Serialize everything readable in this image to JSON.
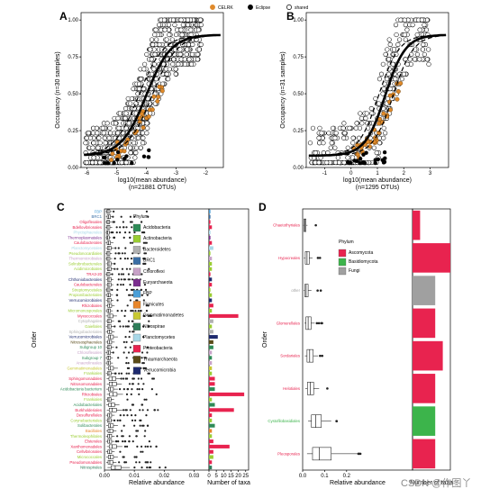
{
  "legend_top": [
    {
      "label": "CELRK",
      "color": "#e08a2a",
      "fill": "#e08a2a"
    },
    {
      "label": "Eclipse",
      "color": "#000000",
      "fill": "#000000"
    },
    {
      "label": "shared",
      "color": "#000000",
      "fill": "#ffffff"
    }
  ],
  "watermark": "CSDN @作图丫",
  "chart_data": [
    {
      "panel": "A",
      "type": "scatter",
      "xlabel": "log10(mean abundance)",
      "xlabel2": "(n=21881 OTUs)",
      "ylabel": "Occupancy (n=30 samples)",
      "xlim": [
        -6.2,
        -1.4
      ],
      "ylim": [
        0,
        1.05
      ],
      "xticks": [
        -6,
        -5,
        -4,
        -3,
        -2
      ],
      "yticks": [
        0,
        0.25,
        0.5,
        0.75,
        1
      ],
      "ytick_labels": [
        "0.00",
        "0.25",
        "0.50",
        "0.75",
        "1.00"
      ],
      "fit": {
        "center": -4.0,
        "slope": 2.4
      },
      "upper_ci_center": -4.25,
      "lower_ci_center": -3.8
    },
    {
      "panel": "B",
      "type": "scatter",
      "xlabel": "log10(mean abundance)",
      "xlabel2": "(n=1295 OTUs)",
      "ylabel": "Occupancy (n=31 samples)",
      "xlim": [
        -1.7,
        3.7
      ],
      "ylim": [
        0,
        1.05
      ],
      "xticks": [
        -1,
        0,
        1,
        2,
        3
      ],
      "yticks": [
        0,
        0.25,
        0.5,
        0.75,
        1
      ],
      "ytick_labels": [
        "0.00",
        "0.25",
        "0.50",
        "0.75",
        "1.00"
      ],
      "fit": {
        "center": 1.3,
        "slope": 2.6
      },
      "upper_ci_center": 1.05,
      "lower_ci_center": 1.6
    },
    {
      "panel": "C",
      "type": "box+bar",
      "xlabel_box": "Relative abundance",
      "xlabel_bar": "Number of taxa",
      "ylabel": "Order",
      "box_xlim": [
        0,
        0.035
      ],
      "box_xticks": [
        0,
        0.01,
        0.02,
        0.03
      ],
      "box_xtick_labels": [
        "0.00",
        "0.01",
        "0.02",
        "0.03"
      ],
      "bar_xlim": [
        0,
        27
      ],
      "bar_xticks": [
        0,
        5,
        10,
        15,
        20,
        25
      ],
      "legend_title": "Phylum",
      "phyla": [
        {
          "name": "Acidobacteria",
          "color": "#2e8b57"
        },
        {
          "name": "Actinobacteria",
          "color": "#9acd32"
        },
        {
          "name": "Bacteroidetes",
          "color": "#b0b0b0"
        },
        {
          "name": "BRC1",
          "color": "#3a6ea5"
        },
        {
          "name": "Chloroflexi",
          "color": "#c8a2c8"
        },
        {
          "name": "Euryarchaeota",
          "color": "#7b2d8e"
        },
        {
          "name": "FBP",
          "color": "#4a9fd8"
        },
        {
          "name": "Firmicutes",
          "color": "#e8862a"
        },
        {
          "name": "Gemmatimonadetes",
          "color": "#c8c832"
        },
        {
          "name": "Nitrospirae",
          "color": "#2e7d5a"
        },
        {
          "name": "Planctomycetes",
          "color": "#a8d8e8"
        },
        {
          "name": "Proteobacteria",
          "color": "#e8234f"
        },
        {
          "name": "Thaumarchaeota",
          "color": "#5a4b18"
        },
        {
          "name": "Verrucomicrobia",
          "color": "#1e2a6e"
        }
      ],
      "orders": [
        {
          "name": "FBP",
          "phylum": "FBP",
          "count": 1,
          "q": [
            0.0004,
            0.0008,
            0.0012,
            0.0018,
            0.0025
          ]
        },
        {
          "name": "BRC1",
          "phylum": "BRC1",
          "count": 1,
          "q": [
            0.0005,
            0.0009,
            0.0013,
            0.002,
            0.0028
          ]
        },
        {
          "name": "Oligoflexales",
          "phylum": "Proteobacteria",
          "count": 1,
          "q": [
            0.0004,
            0.0008,
            0.0012,
            0.0017,
            0.0024
          ]
        },
        {
          "name": "Bdellovibrionales",
          "phylum": "Proteobacteria",
          "count": 2,
          "q": [
            0.0004,
            0.0008,
            0.0012,
            0.0018,
            0.0026
          ]
        },
        {
          "name": "Phycisphaerales",
          "phylum": "Planctomycetes",
          "count": 1,
          "q": [
            0.0004,
            0.0007,
            0.0011,
            0.0016,
            0.0022
          ]
        },
        {
          "name": "Thermoplasmatales",
          "phylum": "Euryarchaeota",
          "count": 1,
          "q": [
            0.0004,
            0.0007,
            0.0011,
            0.0016,
            0.0022
          ]
        },
        {
          "name": "Caulobacterales",
          "phylum": "Proteobacteria",
          "count": 2,
          "q": [
            0.0004,
            0.0009,
            0.0013,
            0.002,
            0.003
          ]
        },
        {
          "name": "Planctomycetales",
          "phylum": "Planctomycetes",
          "count": 3,
          "q": [
            0.0005,
            0.001,
            0.0015,
            0.0022,
            0.0032
          ]
        },
        {
          "name": "Pseudonocardiales",
          "phylum": "Actinobacteria",
          "count": 1,
          "q": [
            0.0004,
            0.0008,
            0.0012,
            0.0018,
            0.0025
          ]
        },
        {
          "name": "Thermomicrobiales",
          "phylum": "Chloroflexi",
          "count": 2,
          "q": [
            0.0004,
            0.0008,
            0.0012,
            0.0018,
            0.0026
          ]
        },
        {
          "name": "Solirubrobacterales",
          "phylum": "Actinobacteria",
          "count": 2,
          "q": [
            0.0005,
            0.001,
            0.0015,
            0.0022,
            0.0032
          ]
        },
        {
          "name": "Acidimicrobiales",
          "phylum": "Actinobacteria",
          "count": 2,
          "q": [
            0.0005,
            0.001,
            0.0015,
            0.0022,
            0.0032
          ]
        },
        {
          "name": "TRA3-20",
          "phylum": "Proteobacteria",
          "count": 1,
          "q": [
            0.0004,
            0.0008,
            0.0012,
            0.0018,
            0.0024
          ]
        },
        {
          "name": "Chthoniobacterales",
          "phylum": "Verrucomicrobia",
          "count": 2,
          "q": [
            0.0005,
            0.001,
            0.0015,
            0.0022,
            0.003
          ]
        },
        {
          "name": "Caulobacterales",
          "phylum": "Proteobacteria",
          "count": 2,
          "q": [
            0.0005,
            0.001,
            0.0015,
            0.0022,
            0.003
          ]
        },
        {
          "name": "Streptomycetales",
          "phylum": "Actinobacteria",
          "count": 1,
          "q": [
            0.0004,
            0.0008,
            0.0012,
            0.0018,
            0.0024
          ]
        },
        {
          "name": "Propionibacteriales",
          "phylum": "Actinobacteria",
          "count": 2,
          "q": [
            0.0004,
            0.0009,
            0.0013,
            0.002,
            0.0028
          ]
        },
        {
          "name": "Verrucomicrobiales",
          "phylum": "Verrucomicrobia",
          "count": 2,
          "q": [
            0.0005,
            0.001,
            0.0015,
            0.0022,
            0.003
          ]
        },
        {
          "name": "Rhizobiales",
          "phylum": "Proteobacteria",
          "count": 3,
          "q": [
            0.0005,
            0.0011,
            0.0016,
            0.0024,
            0.0034
          ]
        },
        {
          "name": "Micromonosporales",
          "phylum": "Actinobacteria",
          "count": 2,
          "q": [
            0.0004,
            0.0009,
            0.0013,
            0.002,
            0.0028
          ]
        },
        {
          "name": "Myxococcales",
          "phylum": "Proteobacteria",
          "count": 20,
          "q": [
            0.0005,
            0.0012,
            0.0018,
            0.0028,
            0.0042
          ]
        },
        {
          "name": "Cytophagales",
          "phylum": "Bacteroidetes",
          "count": 3,
          "q": [
            0.0005,
            0.001,
            0.0015,
            0.0022,
            0.0032
          ]
        },
        {
          "name": "Gaiellales",
          "phylum": "Actinobacteria",
          "count": 2,
          "q": [
            0.0005,
            0.001,
            0.0015,
            0.0022,
            0.0032
          ]
        },
        {
          "name": "Sphingobacteriales",
          "phylum": "Bacteroidetes",
          "count": 3,
          "q": [
            0.0005,
            0.0011,
            0.0016,
            0.0024,
            0.0034
          ]
        },
        {
          "name": "Verrucomicrobiales",
          "phylum": "Verrucomicrobia",
          "count": 6,
          "q": [
            0.0006,
            0.0013,
            0.002,
            0.003,
            0.0045
          ]
        },
        {
          "name": "Nitrososphaerales",
          "phylum": "Thaumarchaeota",
          "count": 3,
          "q": [
            0.0005,
            0.0011,
            0.0016,
            0.0024,
            0.0034
          ]
        },
        {
          "name": "Subgroup 10",
          "phylum": "Acidobacteria",
          "count": 3,
          "q": [
            0.0005,
            0.001,
            0.0015,
            0.0022,
            0.0032
          ]
        },
        {
          "name": "Chloroflexales",
          "phylum": "Chloroflexi",
          "count": 2,
          "q": [
            0.0004,
            0.0009,
            0.0013,
            0.002,
            0.0028
          ]
        },
        {
          "name": "Subgroup 7",
          "phylum": "Acidobacteria",
          "count": 2,
          "q": [
            0.0004,
            0.0009,
            0.0013,
            0.002,
            0.0028
          ]
        },
        {
          "name": "Anaerolineales",
          "phylum": "Chloroflexi",
          "count": 2,
          "q": [
            0.0004,
            0.0009,
            0.0013,
            0.002,
            0.0028
          ]
        },
        {
          "name": "Gemmatimonadales",
          "phylum": "Gemmatimonadetes",
          "count": 2,
          "q": [
            0.0006,
            0.0013,
            0.002,
            0.003,
            0.0045
          ]
        },
        {
          "name": "Frankiales",
          "phylum": "Actinobacteria",
          "count": 2,
          "q": [
            0.0005,
            0.001,
            0.0015,
            0.0022,
            0.0032
          ]
        },
        {
          "name": "Sphingomonadales",
          "phylum": "Proteobacteria",
          "count": 4,
          "q": [
            0.0007,
            0.0015,
            0.0025,
            0.0038,
            0.0055
          ]
        },
        {
          "name": "Nitrosomonadales",
          "phylum": "Proteobacteria",
          "count": 4,
          "q": [
            0.0008,
            0.0016,
            0.0026,
            0.004,
            0.0058
          ]
        },
        {
          "name": "Acidobacteria bacterium",
          "phylum": "Acidobacteria",
          "count": 4,
          "q": [
            0.0006,
            0.0013,
            0.002,
            0.003,
            0.0045
          ]
        },
        {
          "name": "Rhizobiales",
          "phylum": "Proteobacteria",
          "count": 24,
          "q": [
            0.0008,
            0.0017,
            0.0028,
            0.0042,
            0.0062
          ]
        },
        {
          "name": "Frankiales",
          "phylum": "Actinobacteria",
          "count": 2,
          "q": [
            0.0005,
            0.001,
            0.0015,
            0.0022,
            0.0032
          ]
        },
        {
          "name": "Acidobacteriales",
          "phylum": "Acidobacteria",
          "count": 4,
          "q": [
            0.0006,
            0.0014,
            0.0022,
            0.0034,
            0.005
          ]
        },
        {
          "name": "Burkholderiales",
          "phylum": "Proteobacteria",
          "count": 17,
          "q": [
            0.0008,
            0.0016,
            0.0026,
            0.004,
            0.006
          ]
        },
        {
          "name": "Desulfurellales",
          "phylum": "Proteobacteria",
          "count": 2,
          "q": [
            0.0005,
            0.0011,
            0.0016,
            0.0024,
            0.0034
          ]
        },
        {
          "name": "Corynebacteriales",
          "phylum": "Actinobacteria",
          "count": 2,
          "q": [
            0.0005,
            0.001,
            0.0015,
            0.0022,
            0.0032
          ]
        },
        {
          "name": "Solibacterales",
          "phylum": "Acidobacteria",
          "count": 4,
          "q": [
            0.0006,
            0.0013,
            0.002,
            0.003,
            0.0045
          ]
        },
        {
          "name": "Bacillales",
          "phylum": "Firmicutes",
          "count": 2,
          "q": [
            0.0006,
            0.0012,
            0.0018,
            0.0028,
            0.004
          ]
        },
        {
          "name": "Thermoleophilales",
          "phylum": "Actinobacteria",
          "count": 2,
          "q": [
            0.0005,
            0.0011,
            0.0016,
            0.0024,
            0.0034
          ]
        },
        {
          "name": "Elsterales",
          "phylum": "Proteobacteria",
          "count": 3,
          "q": [
            0.0005,
            0.0011,
            0.0016,
            0.0024,
            0.0034
          ]
        },
        {
          "name": "Xanthomonadales",
          "phylum": "Proteobacteria",
          "count": 14,
          "q": [
            0.0008,
            0.0016,
            0.0026,
            0.004,
            0.006
          ]
        },
        {
          "name": "Cellvibrionales",
          "phylum": "Proteobacteria",
          "count": 3,
          "q": [
            0.0005,
            0.0011,
            0.0016,
            0.0024,
            0.0034
          ]
        },
        {
          "name": "Micrococcales",
          "phylum": "Actinobacteria",
          "count": 3,
          "q": [
            0.0006,
            0.0013,
            0.002,
            0.003,
            0.0045
          ]
        },
        {
          "name": "Pseudomonadales",
          "phylum": "Proteobacteria",
          "count": 2,
          "q": [
            0.0006,
            0.0012,
            0.0018,
            0.0028,
            0.004
          ]
        },
        {
          "name": "Nitrospirales",
          "phylum": "Nitrospirae",
          "count": 2,
          "q": [
            0.001,
            0.0022,
            0.0036,
            0.0055,
            0.0085
          ]
        }
      ]
    },
    {
      "panel": "D",
      "type": "box+bar",
      "xlabel_box": "Relative abundance",
      "xlabel_bar": "Number of taxa",
      "ylabel": "Order",
      "box_xlim": [
        0,
        0.5
      ],
      "box_xticks": [
        0,
        0.1,
        0.2
      ],
      "box_xtick_labels": [
        "0.0",
        "0.1",
        "0.2"
      ],
      "legend_title": "Phylum",
      "phyla": [
        {
          "name": "Ascomycota",
          "color": "#e8234f"
        },
        {
          "name": "Basidiomycota",
          "color": "#3cb44b"
        },
        {
          "name": "Fungi",
          "color": "#a0a0a0"
        }
      ],
      "orders": [
        {
          "name": "Chaetothyriales",
          "phylum": "Ascomycota",
          "count": 1,
          "q": [
            0.003,
            0.006,
            0.01,
            0.015,
            0.022
          ]
        },
        {
          "name": "Hypocreales",
          "phylum": "Ascomycota",
          "count": 5,
          "q": [
            0.006,
            0.012,
            0.02,
            0.03,
            0.045
          ]
        },
        {
          "name": "other",
          "phylum": "Fungi",
          "count": 3,
          "q": [
            0.005,
            0.01,
            0.016,
            0.025,
            0.04
          ]
        },
        {
          "name": "Glomerellales",
          "phylum": "Ascomycota",
          "count": 3,
          "q": [
            0.008,
            0.015,
            0.025,
            0.038,
            0.055
          ]
        },
        {
          "name": "Sordariales",
          "phylum": "Ascomycota",
          "count": 4,
          "q": [
            0.01,
            0.02,
            0.032,
            0.048,
            0.07
          ]
        },
        {
          "name": "Helotiales",
          "phylum": "Ascomycota",
          "count": 3,
          "q": [
            0.012,
            0.022,
            0.035,
            0.05,
            0.075
          ]
        },
        {
          "name": "Cystofilobasidiales",
          "phylum": "Basidiomycota",
          "count": 3,
          "q": [
            0.025,
            0.04,
            0.06,
            0.085,
            0.13
          ]
        },
        {
          "name": "Pleosporales",
          "phylum": "Ascomycota",
          "count": 3,
          "q": [
            0.02,
            0.045,
            0.075,
            0.13,
            0.25
          ]
        }
      ]
    }
  ]
}
